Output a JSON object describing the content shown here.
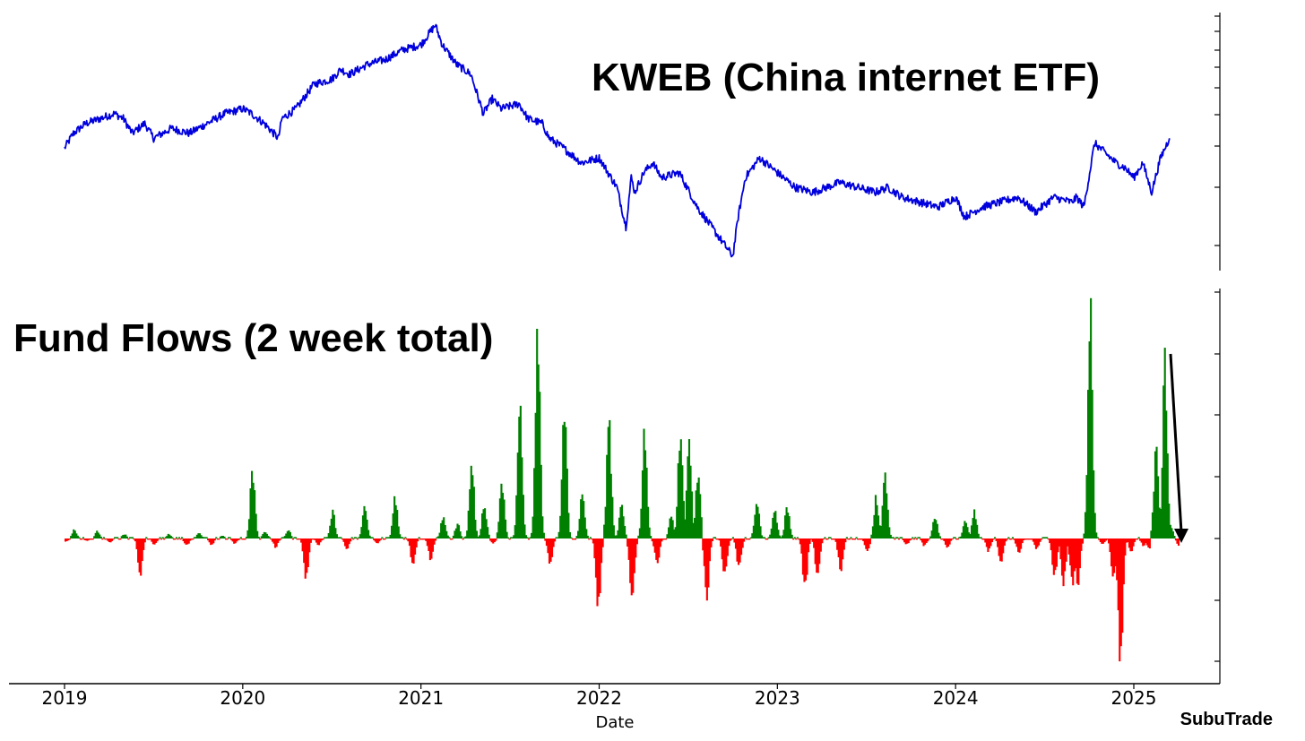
{
  "chart_data": [
    {
      "type": "line",
      "title": "KWEB (China internet ETF)",
      "series": [
        {
          "color": "#0000dd",
          "x": [
            2019.0,
            2019.05,
            2019.12,
            2019.2,
            2019.28,
            2019.33,
            2019.38,
            2019.45,
            2019.5,
            2019.6,
            2019.7,
            2019.8,
            2019.9,
            2020.0,
            2020.05,
            2020.12,
            2020.2,
            2020.22,
            2020.3,
            2020.4,
            2020.5,
            2020.55,
            2020.6,
            2020.7,
            2020.8,
            2020.9,
            2021.0,
            2021.08,
            2021.12,
            2021.16,
            2021.2,
            2021.28,
            2021.35,
            2021.4,
            2021.45,
            2021.55,
            2021.6,
            2021.68,
            2021.72,
            2021.8,
            2021.9,
            2022.0,
            2022.1,
            2022.15,
            2022.18,
            2022.2,
            2022.25,
            2022.3,
            2022.35,
            2022.45,
            2022.55,
            2022.65,
            2022.75,
            2022.78,
            2022.82,
            2022.9,
            2023.0,
            2023.1,
            2023.2,
            2023.35,
            2023.45,
            2023.55,
            2023.62,
            2023.7,
            2023.8,
            2023.9,
            2024.0,
            2024.05,
            2024.15,
            2024.25,
            2024.35,
            2024.45,
            2024.55,
            2024.65,
            2024.68,
            2024.72,
            2024.78,
            2024.9,
            2024.95,
            2025.0,
            2025.05,
            2025.1,
            2025.15,
            2025.2
          ],
          "y": [
            36,
            39,
            41,
            42,
            43,
            42,
            39,
            41,
            38,
            40,
            39,
            41,
            43,
            44,
            43,
            41,
            38,
            42,
            44,
            49,
            50,
            52,
            51,
            53,
            54,
            56,
            57,
            61,
            57,
            55,
            53,
            51,
            43,
            46,
            44,
            45,
            42,
            41,
            38,
            36,
            33,
            34,
            28,
            20,
            30,
            27,
            31,
            33,
            30,
            31,
            24,
            19,
            14,
            22,
            30,
            34,
            31,
            28,
            27,
            29,
            28,
            27,
            28,
            26,
            25,
            24,
            26,
            22,
            24,
            25,
            26,
            23,
            26,
            25,
            26,
            24,
            37,
            33,
            32,
            30,
            33,
            27,
            34,
            38
          ]
        }
      ]
    },
    {
      "type": "bar",
      "title": "Fund Flows (2 week total)",
      "xlabel": "Date",
      "xlim": [
        2018.99,
        2025.45
      ],
      "ylim": [
        -1.06,
        1.12
      ],
      "xticks": [
        "2019",
        "2020",
        "2021",
        "2022",
        "2023",
        "2024",
        "2025"
      ],
      "positive_color": "#008000",
      "negative_color": "#ff0000",
      "peaks": [
        [
          2019.0,
          -0.03
        ],
        [
          2019.05,
          0.06
        ],
        [
          2019.12,
          -0.02
        ],
        [
          2019.18,
          0.05
        ],
        [
          2019.25,
          -0.03
        ],
        [
          2019.33,
          0.03
        ],
        [
          2019.42,
          -0.28
        ],
        [
          2019.5,
          -0.05
        ],
        [
          2019.58,
          0.03
        ],
        [
          2019.68,
          -0.06
        ],
        [
          2019.75,
          0.04
        ],
        [
          2019.82,
          -0.05
        ],
        [
          2019.88,
          0.02
        ],
        [
          2019.95,
          -0.04
        ],
        [
          2020.05,
          0.48
        ],
        [
          2020.12,
          0.05
        ],
        [
          2020.18,
          -0.07
        ],
        [
          2020.25,
          0.06
        ],
        [
          2020.35,
          -0.35
        ],
        [
          2020.42,
          -0.05
        ],
        [
          2020.5,
          0.18
        ],
        [
          2020.58,
          -0.08
        ],
        [
          2020.68,
          0.23
        ],
        [
          2020.75,
          -0.04
        ],
        [
          2020.85,
          0.28
        ],
        [
          2020.95,
          -0.22
        ],
        [
          2021.05,
          -0.18
        ],
        [
          2021.12,
          0.15
        ],
        [
          2021.2,
          0.1
        ],
        [
          2021.28,
          0.52
        ],
        [
          2021.35,
          0.24
        ],
        [
          2021.4,
          -0.04
        ],
        [
          2021.45,
          0.38
        ],
        [
          2021.55,
          0.9
        ],
        [
          2021.65,
          1.5
        ],
        [
          2021.72,
          -0.22
        ],
        [
          2021.8,
          0.93
        ],
        [
          2021.9,
          0.32
        ],
        [
          2021.99,
          -0.56
        ],
        [
          2022.05,
          0.8
        ],
        [
          2022.12,
          0.22
        ],
        [
          2022.18,
          -0.52
        ],
        [
          2022.25,
          0.75
        ],
        [
          2022.32,
          -0.22
        ],
        [
          2022.4,
          0.15
        ],
        [
          2022.45,
          0.72
        ],
        [
          2022.5,
          0.65
        ],
        [
          2022.55,
          0.45
        ],
        [
          2022.6,
          -0.45
        ],
        [
          2022.7,
          -0.32
        ],
        [
          2022.78,
          -0.25
        ],
        [
          2022.88,
          0.27
        ],
        [
          2022.98,
          0.2
        ],
        [
          2023.05,
          0.22
        ],
        [
          2023.15,
          -0.4
        ],
        [
          2023.22,
          -0.3
        ],
        [
          2023.35,
          -0.27
        ],
        [
          2023.5,
          -0.1
        ],
        [
          2023.55,
          0.28
        ],
        [
          2023.6,
          0.43
        ],
        [
          2023.72,
          -0.05
        ],
        [
          2023.82,
          -0.06
        ],
        [
          2023.88,
          0.15
        ],
        [
          2023.95,
          -0.07
        ],
        [
          2024.05,
          0.12
        ],
        [
          2024.1,
          0.18
        ],
        [
          2024.18,
          -0.1
        ],
        [
          2024.25,
          -0.2
        ],
        [
          2024.35,
          -0.12
        ],
        [
          2024.45,
          -0.08
        ],
        [
          2024.55,
          -0.32
        ],
        [
          2024.6,
          -0.35
        ],
        [
          2024.65,
          -0.38
        ],
        [
          2024.68,
          -0.4
        ],
        [
          2024.75,
          1.55
        ],
        [
          2024.82,
          -0.05
        ],
        [
          2024.88,
          -0.35
        ],
        [
          2024.92,
          -1.05
        ],
        [
          2024.98,
          -0.1
        ],
        [
          2025.05,
          -0.06
        ],
        [
          2025.08,
          -0.08
        ],
        [
          2025.12,
          0.6
        ],
        [
          2025.17,
          1.2
        ],
        [
          2025.2,
          0.1
        ],
        [
          2025.25,
          -0.06
        ]
      ],
      "annotation": {
        "type": "arrow",
        "direction": "down",
        "color": "#000000"
      }
    }
  ],
  "watermark": "SubuTrade"
}
